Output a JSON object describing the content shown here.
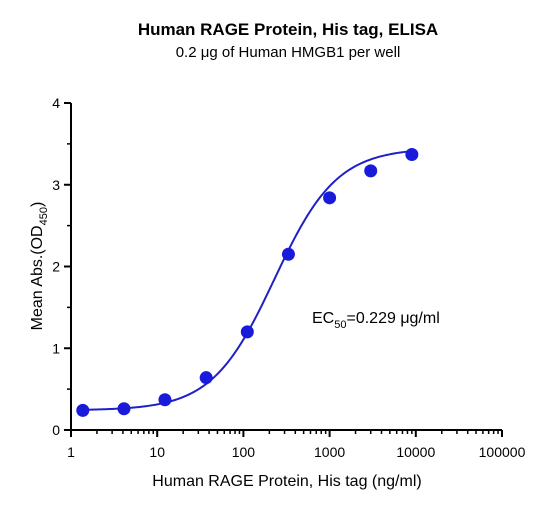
{
  "chart_data": {
    "type": "scatter",
    "title": "Human RAGE Protein, His tag, ELISA",
    "subtitle": "0.2 μg of Human HMGB1 per well",
    "xlabel": "Human RAGE Protein, His tag (ng/ml)",
    "ylabel": {
      "main": "Mean Abs.(OD",
      "sub": "450",
      "close": ")"
    },
    "x_scale": "log10",
    "xlim": [
      1,
      100000
    ],
    "ylim": [
      0,
      4
    ],
    "x_ticks": [
      1,
      10,
      100,
      1000,
      10000,
      100000
    ],
    "x_tick_labels": [
      "1",
      "10",
      "100",
      "1000",
      "10000",
      "100000"
    ],
    "y_ticks": [
      0,
      1,
      2,
      3,
      4
    ],
    "y_tick_labels": [
      "0",
      "1",
      "2",
      "3",
      "4"
    ],
    "grid": false,
    "series": [
      {
        "x": [
          1.37,
          4.12,
          12.3,
          37.0,
          111,
          333,
          1000,
          3000,
          9000
        ],
        "y": [
          0.24,
          0.26,
          0.37,
          0.64,
          1.2,
          2.15,
          2.84,
          3.17,
          3.37
        ]
      }
    ],
    "fit": {
      "model": "4PL",
      "bottom": 0.24,
      "top": 3.45,
      "ec50": 229,
      "hill": 1.2
    },
    "annotation": {
      "prefix": "EC",
      "sub": "50",
      "suffix": "=0.229 μg/ml"
    },
    "colors": {
      "points": "#1a1adb",
      "curve": "#2020c8",
      "axis": "#000000"
    }
  }
}
